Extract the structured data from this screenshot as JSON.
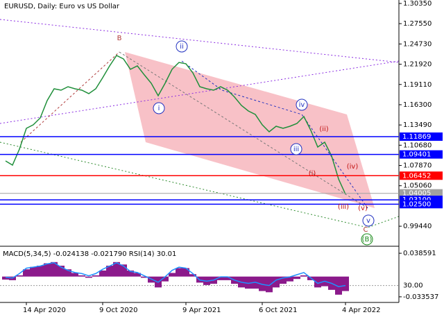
{
  "chart_data": [
    {
      "type": "line",
      "title": "EURUSD, Daily:  Euro vs US Dollar",
      "categories": [
        null,
        null,
        null,
        "14 Apr 2020",
        null,
        null,
        null,
        null,
        null,
        null,
        null,
        null,
        null,
        null,
        "9 Oct 2020",
        null,
        null,
        null,
        null,
        null,
        null,
        null,
        null,
        null,
        null,
        null,
        "9 Apr 2021",
        null,
        null,
        null,
        null,
        null,
        null,
        null,
        null,
        null,
        null,
        "6 Oct 2021",
        null,
        null,
        null,
        null,
        null,
        null,
        null,
        null,
        null,
        null,
        null,
        "4 Apr 2022",
        null,
        null,
        null,
        null,
        null,
        null,
        null
      ],
      "values": [
        1.085,
        1.0792,
        1.1014,
        1.1302,
        1.1351,
        1.1447,
        1.1687,
        1.1851,
        1.1832,
        1.188,
        1.1851,
        1.1832,
        1.1784,
        1.1851,
        1.2005,
        1.2169,
        1.2313,
        1.2265,
        1.2121,
        1.2169,
        1.2044,
        1.1928,
        1.1755,
        1.1928,
        1.2121,
        1.2217,
        1.2198,
        1.2072,
        1.188,
        1.1851,
        1.1832,
        1.188,
        1.1832,
        1.1736,
        1.162,
        1.1543,
        1.1495,
        1.1351,
        1.1254,
        1.1331,
        1.1302,
        1.1331,
        1.137,
        1.1466,
        1.1274,
        1.1042,
        1.111,
        1.0918,
        1.06,
        1.0388,
        null,
        null,
        null,
        null,
        null,
        null,
        null
      ],
      "color": "#1f8f3a",
      "ylim": [
        0.9666,
        1.3083
      ],
      "yticks": [
        {
          "value": 1.3035,
          "label": "1.30350"
        },
        {
          "value": 1.2755,
          "label": "1.27550"
        },
        {
          "value": 1.2473,
          "label": "1.24730"
        },
        {
          "value": 1.2192,
          "label": "1.21920"
        },
        {
          "value": 1.1911,
          "label": "1.19110"
        },
        {
          "value": 1.163,
          "label": "1.16300"
        },
        {
          "value": 1.1349,
          "label": "1.13490"
        },
        {
          "value": 1.1068,
          "label": "1.10680"
        },
        {
          "value": 1.0787,
          "label": "1.07870"
        },
        {
          "value": 1.0506,
          "label": "1.05060"
        },
        {
          "value": 0.9944,
          "label": "0.99440"
        }
      ],
      "levels": [
        {
          "value": 1.11869,
          "color": "#0000ff"
        },
        {
          "value": 1.09401,
          "color": "#0000ff"
        },
        {
          "value": 1.06452,
          "color": "#ff0000"
        },
        {
          "value": 1.04005,
          "color": "#a0a0a0"
        },
        {
          "value": 1.031,
          "label": "1.03100",
          "color": "#0000ff"
        },
        {
          "value": 1.025,
          "label": "1.02500",
          "color": "#0000ff"
        }
      ],
      "annotations": [
        {
          "text": "B",
          "color": "#b03a3a"
        },
        {
          "text": "ii",
          "color": "#2030c0",
          "circled": true
        },
        {
          "text": "i",
          "color": "#2030c0",
          "circled": true
        },
        {
          "text": "iv",
          "color": "#2030c0",
          "circled": true
        },
        {
          "text": "iii",
          "color": "#2030c0",
          "circled": true
        },
        {
          "text": "(ii)",
          "color": "#c01010"
        },
        {
          "text": "(i)",
          "color": "#c01010"
        },
        {
          "text": "(iv)",
          "color": "#c01010"
        },
        {
          "text": "(iii)",
          "color": "#c01010"
        },
        {
          "text": "(v)",
          "color": "#c01010"
        },
        {
          "text": "v",
          "color": "#2030c0",
          "circled": true
        },
        {
          "text": "C",
          "color": "#b03a3a"
        },
        {
          "text": "(B)",
          "color": "#1a8a1a",
          "circled": true
        }
      ]
    },
    {
      "type": "bar",
      "title": "MACD(5,34,5) -0.024138 -0.021790 RSI(14) 30.01",
      "ylim": [
        -0.0417,
        0.0479
      ],
      "yticks": [
        0.038591,
        -0.033537
      ],
      "y2lim": [
        0,
        100
      ],
      "y2ticks": [
        {
          "value": 30,
          "label": "30.00"
        }
      ],
      "series": [
        {
          "color": "#8b1a8b",
          "values": [
            -0.005,
            -0.006,
            0.002,
            0.012,
            0.016,
            0.018,
            0.022,
            0.024,
            0.018,
            0.012,
            0.006,
            0.002,
            -0.002,
            0.002,
            0.01,
            0.018,
            0.024,
            0.02,
            0.01,
            0.006,
            -0.002,
            -0.01,
            -0.018,
            -0.008,
            0.006,
            0.014,
            0.014,
            0.004,
            -0.01,
            -0.014,
            -0.012,
            -0.006,
            -0.006,
            -0.012,
            -0.018,
            -0.02,
            -0.02,
            -0.024,
            -0.026,
            -0.018,
            -0.012,
            -0.008,
            -0.004,
            0.002,
            -0.006,
            -0.018,
            -0.016,
            -0.022,
            -0.03,
            -0.024,
            null,
            null,
            null,
            null,
            null,
            null,
            null
          ]
        },
        {
          "color": "#1e90ff",
          "axis": "y2",
          "values": [
            45,
            44,
            52,
            62,
            64,
            66,
            70,
            72,
            64,
            58,
            54,
            52,
            48,
            52,
            60,
            66,
            72,
            66,
            56,
            54,
            48,
            42,
            36,
            46,
            58,
            64,
            62,
            52,
            40,
            38,
            40,
            46,
            46,
            40,
            36,
            34,
            36,
            32,
            30,
            40,
            44,
            46,
            50,
            54,
            44,
            34,
            38,
            34,
            28,
            30,
            null,
            null,
            null,
            null,
            null,
            null,
            null
          ]
        }
      ]
    }
  ]
}
